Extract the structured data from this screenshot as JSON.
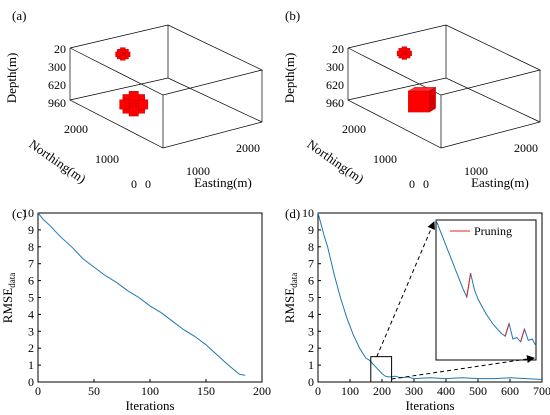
{
  "colors": {
    "series": "#1f77b4",
    "pruning": "#e02020",
    "voxels": "#ff0000"
  },
  "panels": [
    {
      "tag": "(a)"
    },
    {
      "tag": "(b)"
    },
    {
      "tag": "(c)"
    },
    {
      "tag": "(d)"
    }
  ],
  "chart_data": [
    {
      "panel": "(a)",
      "type": "scatter",
      "title": "",
      "zlabel": "Depth(m)",
      "ylabel": "Northing(m)",
      "xlabel": "Easting(m)",
      "z_ticks": [
        "20",
        "300",
        "620",
        "960"
      ],
      "y_ticks": [
        "0",
        "1000",
        "2000"
      ],
      "x_ticks": [
        "0",
        "1000",
        "2000"
      ],
      "grid": true,
      "bodies": [
        {
          "label": "",
          "easting": 300,
          "northing": 1200,
          "depth": 600,
          "size": 350,
          "shape": "blob"
        },
        {
          "label": "",
          "easting": 1400,
          "northing": 2700,
          "depth": 320,
          "size": 180,
          "shape": "blob"
        }
      ]
    },
    {
      "panel": "(b)",
      "type": "scatter",
      "title": "",
      "zlabel": "Depth(m)",
      "ylabel": "Northing(m)",
      "xlabel": "Easting(m)",
      "z_ticks": [
        "20",
        "300",
        "620",
        "960"
      ],
      "y_ticks": [
        "0",
        "1000",
        "2000"
      ],
      "x_ticks": [
        "0",
        "1000",
        "2000"
      ],
      "grid": true,
      "bodies": [
        {
          "label": "",
          "easting": 500,
          "northing": 1200,
          "depth": 600,
          "size": 350,
          "shape": "cube"
        },
        {
          "label": "",
          "easting": 1500,
          "northing": 2700,
          "depth": 320,
          "size": 180,
          "shape": "blob"
        }
      ]
    },
    {
      "panel": "(c)",
      "type": "line",
      "title": "",
      "xlabel": "Iterations",
      "ylabel": "RMSE",
      "ylabel_sub": "data",
      "xlim": [
        0,
        200
      ],
      "ylim": [
        0,
        10
      ],
      "xticks": [
        0,
        50,
        100,
        150,
        200
      ],
      "yticks": [
        0,
        1,
        2,
        3,
        4,
        5,
        6,
        7,
        8,
        9,
        10
      ],
      "grid": false,
      "series": [
        {
          "x": [
            0,
            5,
            10,
            20,
            30,
            40,
            50,
            60,
            70,
            80,
            90,
            100,
            110,
            120,
            130,
            140,
            150,
            160,
            170,
            180,
            185
          ],
          "y": [
            10,
            9.6,
            9.3,
            8.6,
            8.0,
            7.3,
            6.8,
            6.3,
            5.9,
            5.4,
            5.0,
            4.5,
            4.1,
            3.6,
            3.1,
            2.7,
            2.2,
            1.6,
            1.0,
            0.45,
            0.4
          ]
        }
      ]
    },
    {
      "panel": "(d)",
      "type": "line",
      "title": "",
      "xlabel": "Iterations",
      "ylabel": "RMSE",
      "ylabel_sub": "data",
      "xlim": [
        0,
        700
      ],
      "ylim": [
        0,
        10
      ],
      "xticks": [
        0,
        100,
        200,
        300,
        400,
        500,
        600,
        700
      ],
      "yticks": [
        0,
        1,
        2,
        3,
        4,
        5,
        6,
        7,
        8,
        9,
        10
      ],
      "grid": false,
      "legend": {
        "position": "inset-top-right",
        "entries": [
          {
            "label": "Pruning",
            "color": "#e02020"
          }
        ]
      },
      "series": [
        {
          "x": [
            0,
            10,
            20,
            30,
            40,
            50,
            60,
            70,
            80,
            90,
            100,
            110,
            120,
            130,
            140,
            150,
            160,
            170,
            180,
            190,
            200,
            210,
            220,
            230,
            240,
            260,
            280,
            300,
            350,
            400,
            450,
            500,
            550,
            600,
            650,
            700
          ],
          "y": [
            10,
            9.3,
            8.6,
            8.0,
            7.2,
            6.4,
            5.7,
            5.0,
            4.4,
            3.8,
            3.3,
            2.8,
            2.4,
            2.0,
            1.7,
            1.4,
            1.3,
            1.1,
            0.9,
            0.7,
            0.5,
            0.35,
            0.3,
            0.3,
            0.35,
            0.25,
            0.3,
            0.2,
            0.25,
            0.2,
            0.25,
            0.2,
            0.2,
            0.25,
            0.2,
            0.15
          ]
        }
      ],
      "zoom_box": {
        "x": [
          165,
          230
        ],
        "y": [
          0,
          1.5
        ]
      },
      "inset": {
        "x": [
          0,
          1,
          2,
          3,
          4,
          5,
          6,
          7,
          8,
          9,
          10,
          11,
          12,
          13,
          14,
          15,
          16,
          17,
          18,
          19,
          20,
          21,
          22,
          23,
          24,
          25,
          26
        ],
        "y": [
          10,
          9.3,
          8.6,
          7.9,
          7.2,
          6.5,
          5.8,
          5.1,
          4.5,
          6.2,
          5.0,
          4.3,
          3.8,
          3.3,
          2.9,
          2.5,
          2.2,
          1.9,
          1.7,
          2.6,
          1.5,
          1.6,
          1.3,
          2.2,
          1.4,
          1.5,
          1.0
        ],
        "pruning_x": [
          [
            8,
            9
          ],
          [
            18,
            19
          ],
          [
            22,
            23
          ]
        ]
      }
    }
  ]
}
